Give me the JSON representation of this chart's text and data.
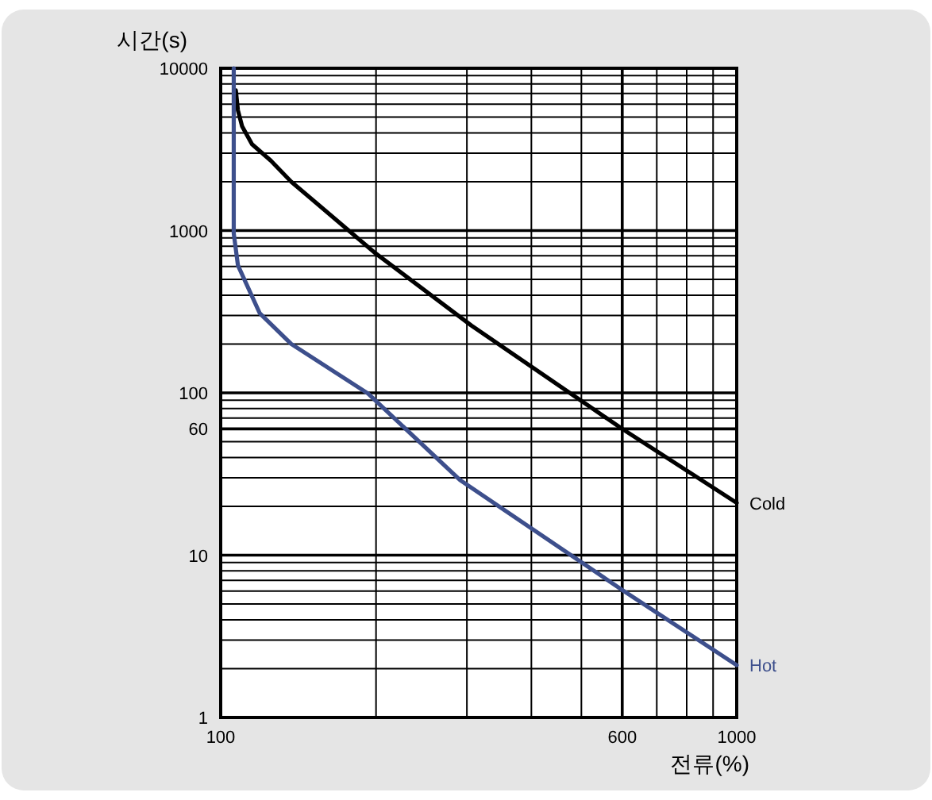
{
  "chart_data": {
    "type": "line",
    "xlabel": "전류(%)",
    "ylabel": "시간(s)",
    "log": "xy",
    "grid": true,
    "xlim": [
      100,
      1000
    ],
    "ylim": [
      1,
      10000
    ],
    "xticks": [
      100,
      {
        "value": 200,
        "label": null
      },
      {
        "value": 300,
        "label": null
      },
      {
        "value": 400,
        "label": null
      },
      {
        "value": 500,
        "label": null
      },
      600,
      {
        "value": 700,
        "label": null
      },
      {
        "value": 800,
        "label": null
      },
      {
        "value": 900,
        "label": null
      },
      1000
    ],
    "yticks": [
      1,
      {
        "value": 2,
        "label": null
      },
      {
        "value": 3,
        "label": null
      },
      {
        "value": 4,
        "label": null
      },
      {
        "value": 5,
        "label": null
      },
      {
        "value": 6,
        "label": null
      },
      {
        "value": 7,
        "label": null
      },
      {
        "value": 8,
        "label": null
      },
      {
        "value": 9,
        "label": null
      },
      10,
      {
        "value": 20,
        "label": null
      },
      {
        "value": 30,
        "label": null
      },
      {
        "value": 40,
        "label": null
      },
      {
        "value": 50,
        "label": null
      },
      60,
      {
        "value": 70,
        "label": null
      },
      {
        "value": 80,
        "label": null
      },
      {
        "value": 90,
        "label": null
      },
      100,
      {
        "value": 200,
        "label": null
      },
      {
        "value": 300,
        "label": null
      },
      {
        "value": 400,
        "label": null
      },
      {
        "value": 500,
        "label": null
      },
      {
        "value": 600,
        "label": null
      },
      {
        "value": 700,
        "label": null
      },
      {
        "value": 800,
        "label": null
      },
      {
        "value": 900,
        "label": null
      },
      1000,
      {
        "value": 2000,
        "label": null
      },
      {
        "value": 3000,
        "label": null
      },
      {
        "value": 4000,
        "label": null
      },
      {
        "value": 5000,
        "label": null
      },
      {
        "value": 6000,
        "label": null
      },
      {
        "value": 7000,
        "label": null
      },
      {
        "value": 8000,
        "label": null
      },
      {
        "value": 9000,
        "label": null
      },
      10000
    ],
    "series": [
      {
        "name": "Cold",
        "color": "#000000",
        "x": [
          107,
          108,
          110,
          115,
          125,
          137,
          200,
          306,
          600,
          1000
        ],
        "values": [
          7300,
          5500,
          4400,
          3400,
          2700,
          2000,
          720,
          260,
          60,
          21
        ]
      },
      {
        "name": "Hot",
        "color": "#3d4f8c",
        "x": [
          106,
          106,
          106,
          108,
          119,
          137,
          193,
          291,
          600,
          1000
        ],
        "values": [
          10000,
          2800,
          960,
          610,
          310,
          200,
          99,
          29,
          6.1,
          2.1
        ]
      }
    ]
  }
}
